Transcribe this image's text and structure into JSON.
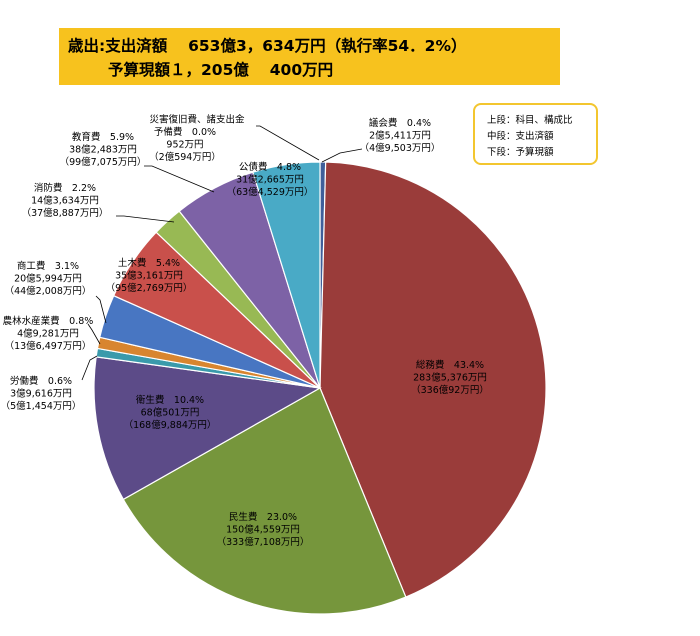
{
  "header": {
    "line1": "歳出:支出済額　 653億3，634万円（執行率54．2%）",
    "line2": "予算現額１，205億　 400万円"
  },
  "legend": {
    "upper": "上段：科目、構成比",
    "middle": "中段：支出済額",
    "lower": "下段：予算現額"
  },
  "colors": {
    "title_bg": "#f7c21e",
    "legend_border": "#f3c62f"
  },
  "chart_data": {
    "type": "pie",
    "start_angle_deg": 0,
    "direction": "clockwise",
    "slices": [
      {
        "name": "議会費",
        "percent": 0.4,
        "pct_label": "0.4%",
        "spent": "2億5,411万円",
        "budget": "（4億9,503万円）",
        "color": "#3f5f9a"
      },
      {
        "name": "総務費",
        "percent": 43.4,
        "pct_label": "43.4%",
        "spent": "283億5,376万円",
        "budget": "（336億92万円）",
        "color": "#9a3c3a"
      },
      {
        "name": "民生費",
        "percent": 23.0,
        "pct_label": "23.0%",
        "spent": "150億4,559万円",
        "budget": "（333億7,108万円）",
        "color": "#76963c"
      },
      {
        "name": "衛生費",
        "percent": 10.4,
        "pct_label": "10.4%",
        "spent": "68億501万円",
        "budget": "（168億9,884万円）",
        "color": "#5c4b88"
      },
      {
        "name": "労働費",
        "percent": 0.6,
        "pct_label": "0.6%",
        "spent": "3億9,616万円",
        "budget": "（5億1,454万円）",
        "color": "#3a9aab"
      },
      {
        "name": "農林水産業費",
        "percent": 0.8,
        "pct_label": "0.8%",
        "spent": "4億9,281万円",
        "budget": "（13億6,497万円）",
        "color": "#d8852f"
      },
      {
        "name": "商工費",
        "percent": 3.1,
        "pct_label": "3.1%",
        "spent": "20億5,994万円",
        "budget": "（44億2,008万円）",
        "color": "#4876c2"
      },
      {
        "name": "土木費",
        "percent": 5.4,
        "pct_label": "5.4%",
        "spent": "35億3,161万円",
        "budget": "（95億2,769万円）",
        "color": "#c9504b"
      },
      {
        "name": "消防費",
        "percent": 2.2,
        "pct_label": "2.2%",
        "spent": "14億3,634万円",
        "budget": "（37億8,887万円）",
        "color": "#98b954"
      },
      {
        "name": "教育費",
        "percent": 5.9,
        "pct_label": "5.9%",
        "spent": "38億2,483万円",
        "budget": "（99億7,075万円）",
        "color": "#7d62a6"
      },
      {
        "name": "予備費",
        "percent": 0.0,
        "pct_label": "0.0%",
        "spent": "952万円",
        "budget": "（2億594万円）",
        "color": "#2f6e78"
      },
      {
        "name": "公債費",
        "percent": 4.8,
        "pct_label": "4.8%",
        "spent": "31億2,665万円",
        "budget": "（63億4,529万円）",
        "color": "#49aac6"
      }
    ],
    "extra_labels": {
      "disaster_heading": "災害復旧費、諸支出金"
    }
  }
}
